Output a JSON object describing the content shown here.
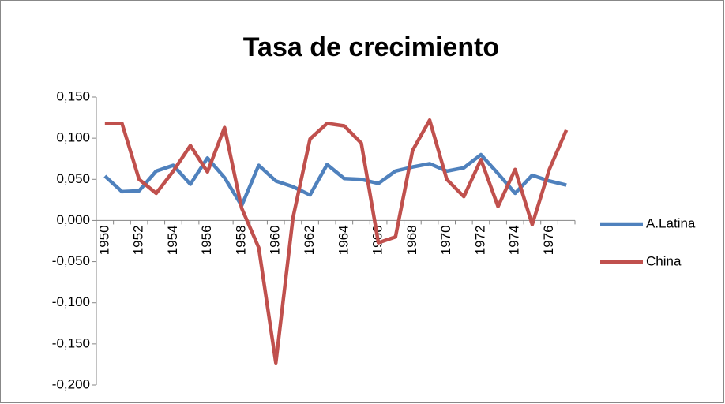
{
  "chart_data": {
    "type": "line",
    "title": "Tasa de crecimiento",
    "categories": [
      "1950",
      null,
      "1952",
      null,
      "1954",
      null,
      "1956",
      null,
      "1958",
      null,
      "1960",
      null,
      "1962",
      null,
      "1964",
      null,
      "1966",
      null,
      "1968",
      null,
      "1970",
      null,
      "1972",
      null,
      "1974",
      null,
      "1976",
      null
    ],
    "series": [
      {
        "name": "A.Latina",
        "color": "#4f81bd",
        "values": [
          0.054,
          0.035,
          0.036,
          0.06,
          0.067,
          0.044,
          0.076,
          0.052,
          0.018,
          0.067,
          0.048,
          0.041,
          0.031,
          0.068,
          0.051,
          0.05,
          0.045,
          0.06,
          0.065,
          0.069,
          0.06,
          0.064,
          0.08,
          0.057,
          0.033,
          0.055,
          0.048,
          0.043
        ]
      },
      {
        "name": "China",
        "color": "#c0504d",
        "values": [
          0.118,
          0.118,
          0.05,
          0.033,
          0.06,
          0.091,
          0.059,
          0.113,
          0.015,
          -0.033,
          -0.173,
          0.003,
          0.099,
          0.118,
          0.115,
          0.094,
          -0.027,
          -0.02,
          0.085,
          0.122,
          0.05,
          0.029,
          0.074,
          0.017,
          0.062,
          -0.005,
          0.062,
          0.11
        ]
      }
    ],
    "ylim": [
      -0.2,
      0.15
    ],
    "yticks": [
      {
        "value": 0.15,
        "label": "0,150"
      },
      {
        "value": 0.1,
        "label": "0,100"
      },
      {
        "value": 0.05,
        "label": "0,050"
      },
      {
        "value": 0,
        "label": "0,000"
      },
      {
        "value": -0.05,
        "label": "-0,050"
      },
      {
        "value": -0.1,
        "label": "-0,100"
      },
      {
        "value": -0.15,
        "label": "-0,150"
      },
      {
        "value": -0.2,
        "label": "-0,200"
      }
    ],
    "grid": false,
    "legend": "right"
  }
}
